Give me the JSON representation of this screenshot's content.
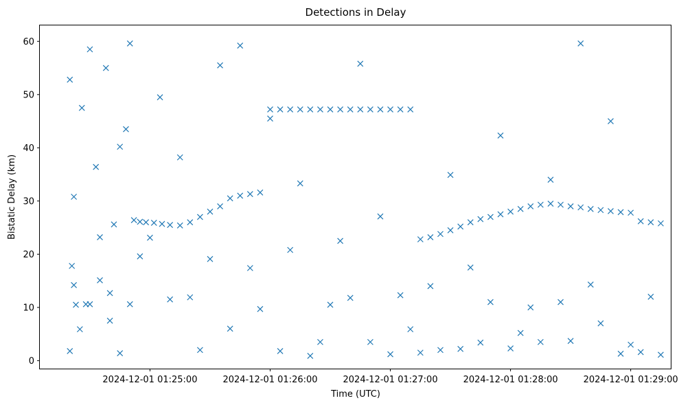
{
  "chart_data": {
    "type": "scatter",
    "title": "Detections in Delay",
    "xlabel": "Time (UTC)",
    "ylabel": "Bistatic Delay (km)",
    "marker": "x",
    "color": "#1f77b4",
    "grid": false,
    "xlim": [
      "2024-12-01 01:24:05",
      "2024-12-01 01:29:20"
    ],
    "ylim": [
      -1.5,
      63
    ],
    "x_ticks": [
      {
        "value": "2024-12-01 01:25:00",
        "label": "2024-12-01 01:25:00"
      },
      {
        "value": "2024-12-01 01:26:00",
        "label": "2024-12-01 01:26:00"
      },
      {
        "value": "2024-12-01 01:27:00",
        "label": "2024-12-01 01:27:00"
      },
      {
        "value": "2024-12-01 01:28:00",
        "label": "2024-12-01 01:28:00"
      },
      {
        "value": "2024-12-01 01:29:00",
        "label": "2024-12-01 01:29:00"
      }
    ],
    "y_ticks": [
      0,
      10,
      20,
      30,
      40,
      50,
      60
    ],
    "series": [
      {
        "x": [
          "2024-12-01 01:24:20",
          "2024-12-01 01:24:21",
          "2024-12-01 01:24:22",
          "2024-12-01 01:24:23",
          "2024-12-01 01:24:26",
          "2024-12-01 01:24:28",
          "2024-12-01 01:24:30",
          "2024-12-01 01:24:33",
          "2024-12-01 01:24:35",
          "2024-12-01 01:24:38",
          "2024-12-01 01:24:40",
          "2024-12-01 01:24:42",
          "2024-12-01 01:24:45",
          "2024-12-01 01:24:48",
          "2024-12-01 01:24:50",
          "2024-12-01 01:24:52",
          "2024-12-01 01:24:55",
          "2024-12-01 01:24:58",
          "2024-12-01 01:25:02",
          "2024-12-01 01:25:06",
          "2024-12-01 01:25:10",
          "2024-12-01 01:25:15",
          "2024-12-01 01:25:20",
          "2024-12-01 01:25:25",
          "2024-12-01 01:25:30",
          "2024-12-01 01:25:35",
          "2024-12-01 01:25:40",
          "2024-12-01 01:25:45",
          "2024-12-01 01:25:50",
          "2024-12-01 01:25:55",
          "2024-12-01 01:26:00",
          "2024-12-01 01:26:05",
          "2024-12-01 01:26:10",
          "2024-12-01 01:26:15",
          "2024-12-01 01:26:20",
          "2024-12-01 01:26:25",
          "2024-12-01 01:26:30",
          "2024-12-01 01:26:35",
          "2024-12-01 01:26:40",
          "2024-12-01 01:26:45",
          "2024-12-01 01:26:50",
          "2024-12-01 01:26:55",
          "2024-12-01 01:27:00",
          "2024-12-01 01:27:05",
          "2024-12-01 01:27:10",
          "2024-12-01 01:27:15",
          "2024-12-01 01:27:20",
          "2024-12-01 01:27:25",
          "2024-12-01 01:27:30",
          "2024-12-01 01:27:35",
          "2024-12-01 01:27:40",
          "2024-12-01 01:27:45",
          "2024-12-01 01:27:50",
          "2024-12-01 01:27:55",
          "2024-12-01 01:28:00",
          "2024-12-01 01:28:05",
          "2024-12-01 01:28:10",
          "2024-12-01 01:28:15",
          "2024-12-01 01:28:20",
          "2024-12-01 01:28:25",
          "2024-12-01 01:28:30",
          "2024-12-01 01:28:35",
          "2024-12-01 01:28:40",
          "2024-12-01 01:28:45",
          "2024-12-01 01:28:50",
          "2024-12-01 01:28:55",
          "2024-12-01 01:29:00",
          "2024-12-01 01:29:05",
          "2024-12-01 01:29:10",
          "2024-12-01 01:29:15"
        ],
        "y": [
          52.8,
          17.8,
          30.8,
          10.5,
          47.5,
          10.6,
          58.5,
          36.4,
          15.1,
          55.0,
          7.5,
          25.6,
          40.2,
          43.5,
          59.6,
          26.4,
          26.1,
          26.0,
          25.9,
          25.7,
          25.5,
          25.4,
          26.0,
          27.0,
          28.0,
          29.0,
          30.5,
          31.0,
          31.3,
          31.6,
          47.2,
          47.2,
          47.2,
          47.2,
          47.2,
          47.2,
          47.2,
          47.2,
          47.2,
          47.2,
          47.2,
          47.2,
          47.2,
          47.2,
          47.2,
          22.8,
          23.2,
          23.8,
          24.5,
          25.2,
          26.0,
          26.6,
          27.0,
          27.5,
          28.0,
          28.5,
          29.0,
          29.3,
          29.5,
          29.3,
          29.0,
          28.8,
          28.5,
          28.3,
          28.1,
          27.9,
          27.8,
          26.2,
          26.0,
          25.8
        ]
      },
      {
        "x": [
          "2024-12-01 01:24:20",
          "2024-12-01 01:24:22",
          "2024-12-01 01:24:25",
          "2024-12-01 01:24:30",
          "2024-12-01 01:24:35",
          "2024-12-01 01:24:40",
          "2024-12-01 01:24:45",
          "2024-12-01 01:24:50",
          "2024-12-01 01:24:55",
          "2024-12-01 01:25:00",
          "2024-12-01 01:25:05",
          "2024-12-01 01:25:10",
          "2024-12-01 01:25:15",
          "2024-12-01 01:25:20",
          "2024-12-01 01:25:25",
          "2024-12-01 01:25:30",
          "2024-12-01 01:25:35",
          "2024-12-01 01:25:40",
          "2024-12-01 01:25:45",
          "2024-12-01 01:25:50",
          "2024-12-01 01:25:55",
          "2024-12-01 01:26:00",
          "2024-12-01 01:26:05",
          "2024-12-01 01:26:10",
          "2024-12-01 01:26:15",
          "2024-12-01 01:26:20",
          "2024-12-01 01:26:25",
          "2024-12-01 01:26:30",
          "2024-12-01 01:26:35",
          "2024-12-01 01:26:40",
          "2024-12-01 01:26:45",
          "2024-12-01 01:26:50",
          "2024-12-01 01:26:55",
          "2024-12-01 01:27:00",
          "2024-12-01 01:27:05",
          "2024-12-01 01:27:10",
          "2024-12-01 01:27:15",
          "2024-12-01 01:27:20",
          "2024-12-01 01:27:25",
          "2024-12-01 01:27:30",
          "2024-12-01 01:27:35",
          "2024-12-01 01:27:40",
          "2024-12-01 01:27:45",
          "2024-12-01 01:27:50",
          "2024-12-01 01:27:55",
          "2024-12-01 01:28:00",
          "2024-12-01 01:28:05",
          "2024-12-01 01:28:10",
          "2024-12-01 01:28:15",
          "2024-12-01 01:28:20",
          "2024-12-01 01:28:25",
          "2024-12-01 01:28:30",
          "2024-12-01 01:28:35",
          "2024-12-01 01:28:40",
          "2024-12-01 01:28:45",
          "2024-12-01 01:28:50",
          "2024-12-01 01:28:55",
          "2024-12-01 01:29:00",
          "2024-12-01 01:29:05",
          "2024-12-01 01:29:10",
          "2024-12-01 01:29:15"
        ],
        "y": [
          1.8,
          14.2,
          5.9,
          10.6,
          23.2,
          12.7,
          1.4,
          10.6,
          19.6,
          23.1,
          49.5,
          11.5,
          38.2,
          11.9,
          2.0,
          19.1,
          55.5,
          6.0,
          59.2,
          17.4,
          9.7,
          45.5,
          1.8,
          20.8,
          33.3,
          0.9,
          3.5,
          10.5,
          22.5,
          11.8,
          55.8,
          3.5,
          27.1,
          1.2,
          12.3,
          5.9,
          1.5,
          14.0,
          2.0,
          34.9,
          2.2,
          17.5,
          3.4,
          11.0,
          42.3,
          2.3,
          5.2,
          10.0,
          3.5,
          34.0,
          11.0,
          3.7,
          59.6,
          14.3,
          7.0,
          45.0,
          1.3,
          3.0,
          1.6,
          12.0,
          1.1
        ]
      }
    ]
  }
}
